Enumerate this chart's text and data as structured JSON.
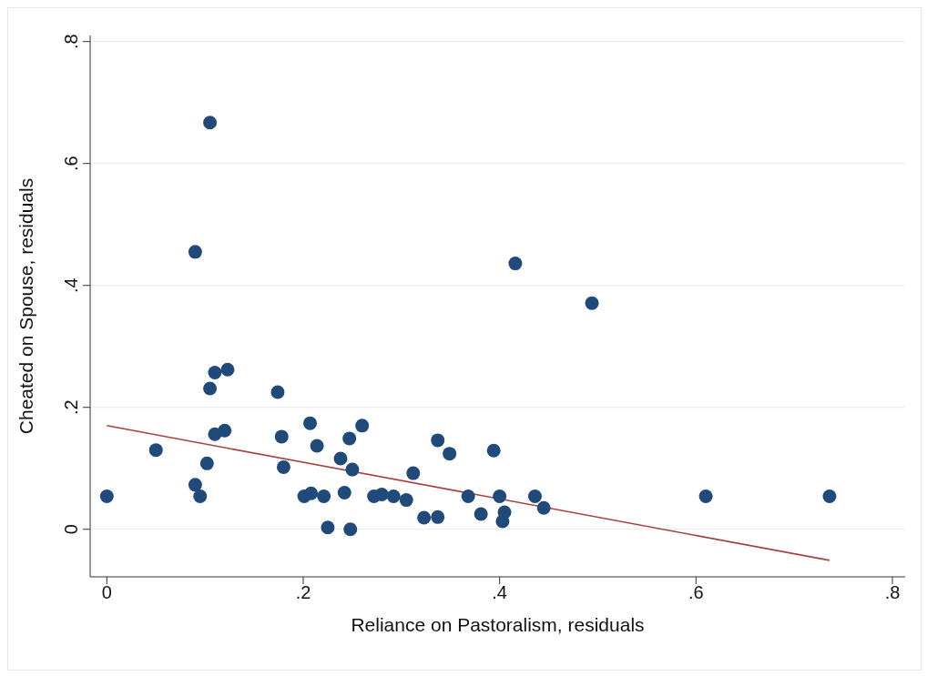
{
  "chart_data": {
    "type": "scatter",
    "xlabel": "Reliance on Pastoralism, residuals",
    "ylabel": "Cheated on Spouse, residuals",
    "xlim": [
      -0.017,
      0.813
    ],
    "ylim": [
      -0.078,
      0.81
    ],
    "xticks": [
      {
        "value": 0,
        "label": "0"
      },
      {
        "value": 0.2,
        "label": ".2"
      },
      {
        "value": 0.4,
        "label": ".4"
      },
      {
        "value": 0.6,
        "label": ".6"
      },
      {
        "value": 0.8,
        "label": ".8"
      }
    ],
    "yticks": [
      {
        "value": 0,
        "label": "0"
      },
      {
        "value": 0.2,
        "label": ".2"
      },
      {
        "value": 0.4,
        "label": ".4"
      },
      {
        "value": 0.6,
        "label": ".6"
      },
      {
        "value": 0.8,
        "label": ".8"
      }
    ],
    "grid": "y",
    "series": [
      {
        "marker": "circle",
        "color": "#1f4a7a",
        "x": [
          0,
          0.05,
          0.09,
          0.105,
          0.11,
          0.123,
          0.105,
          0.11,
          0.12,
          0.102,
          0.09,
          0.095,
          0.174,
          0.178,
          0.18,
          0.207,
          0.214,
          0.201,
          0.208,
          0.221,
          0.225,
          0.238,
          0.242,
          0.247,
          0.25,
          0.248,
          0.26,
          0.272,
          0.28,
          0.292,
          0.305,
          0.312,
          0.323,
          0.337,
          0.337,
          0.349,
          0.368,
          0.381,
          0.394,
          0.4,
          0.403,
          0.405,
          0.416,
          0.436,
          0.445,
          0.494,
          0.61,
          0.736
        ],
        "values": [
          0.054,
          0.13,
          0.455,
          0.667,
          0.257,
          0.262,
          0.231,
          0.156,
          0.162,
          0.108,
          0.073,
          0.054,
          0.225,
          0.152,
          0.102,
          0.174,
          0.137,
          0.054,
          0.059,
          0.054,
          0.003,
          0.116,
          0.06,
          0.149,
          0.098,
          0,
          0.17,
          0.054,
          0.057,
          0.054,
          0.048,
          0.092,
          0.019,
          0.146,
          0.02,
          0.124,
          0.054,
          0.025,
          0.129,
          0.054,
          0.013,
          0.028,
          0.436,
          0.054,
          0.035,
          0.371,
          0.054,
          0.054
        ]
      },
      {
        "type": "line",
        "color": "#a8403c",
        "x": [
          0,
          0.736
        ],
        "values": [
          0.17,
          -0.051
        ]
      }
    ]
  }
}
